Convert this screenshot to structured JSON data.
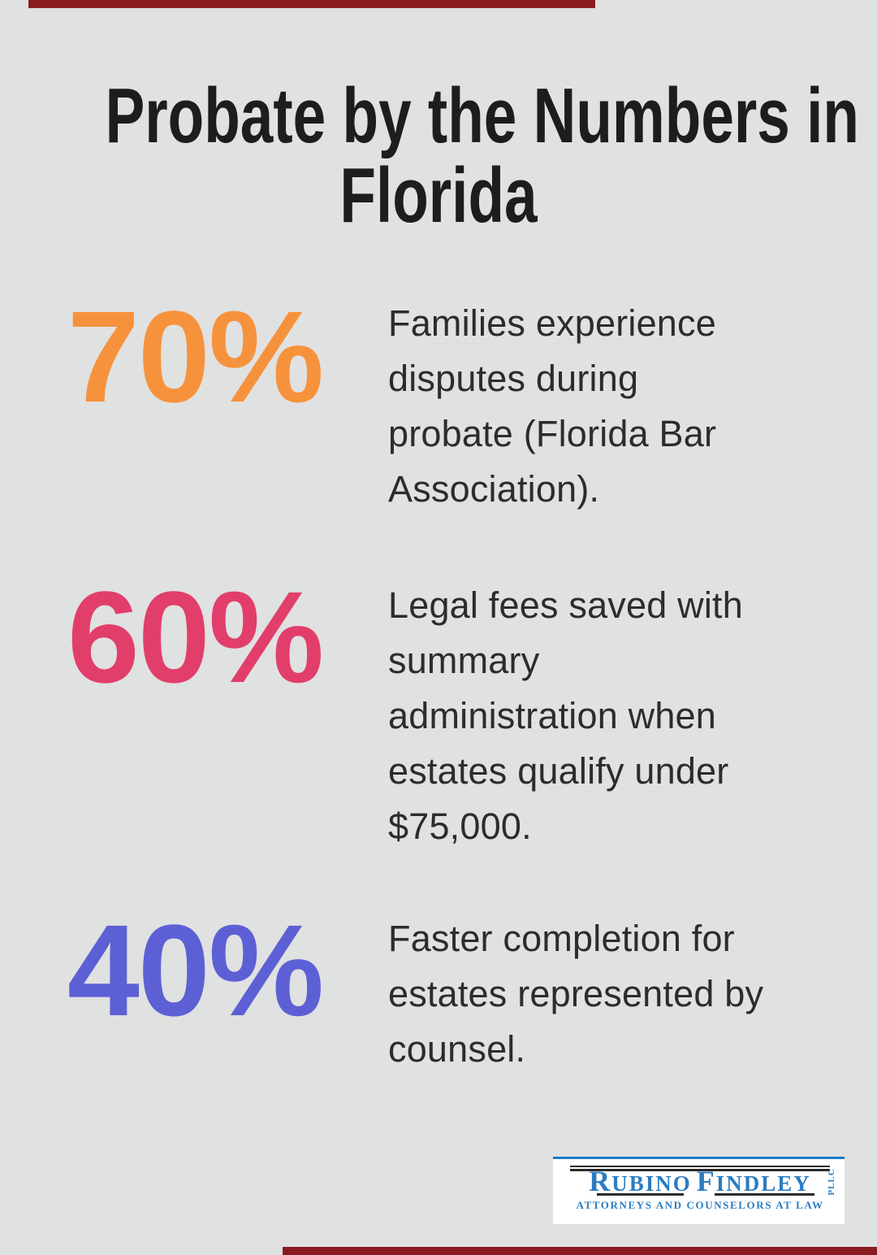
{
  "page": {
    "background_color": "#e0e1e1",
    "accent_bar_color": "#8a1c21"
  },
  "title": {
    "lines": [
      "Probate by the Numbers in",
      "Florida"
    ]
  },
  "stats": [
    {
      "value": "70%",
      "color": "#F7923C",
      "lines": [
        "Families experience",
        "disputes during",
        "probate (Florida Bar",
        "Association)."
      ]
    },
    {
      "value": "60%",
      "color": "#E23E6B",
      "lines": [
        "Legal fees saved with",
        "summary",
        "administration when",
        "estates qualify under",
        "$75,000."
      ]
    },
    {
      "value": "40%",
      "color": "#5D60D5",
      "lines": [
        "Faster completion for",
        "estates represented by",
        "counsel."
      ]
    }
  ],
  "logo": {
    "name_initial_1": "R",
    "name_rest_1": "UBINO",
    "name_initial_2": "F",
    "name_rest_2": "INDLEY",
    "suffix": "PLLC",
    "tagline": "ATTORNEYS AND COUNSELORS AT LAW",
    "brand_blue": "#2b7cc0"
  },
  "chart_data": {
    "type": "table",
    "title": "Probate by the Numbers in Florida",
    "categories": [
      "Families experience disputes during probate (Florida Bar Association).",
      "Legal fees saved with summary administration when estates qualify under $75,000.",
      "Faster completion for estates represented by counsel."
    ],
    "values": [
      70,
      60,
      40
    ],
    "unit": "%",
    "colors": [
      "#F7923C",
      "#E23E6B",
      "#5D60D5"
    ],
    "legend_position": "none",
    "grid": false
  }
}
